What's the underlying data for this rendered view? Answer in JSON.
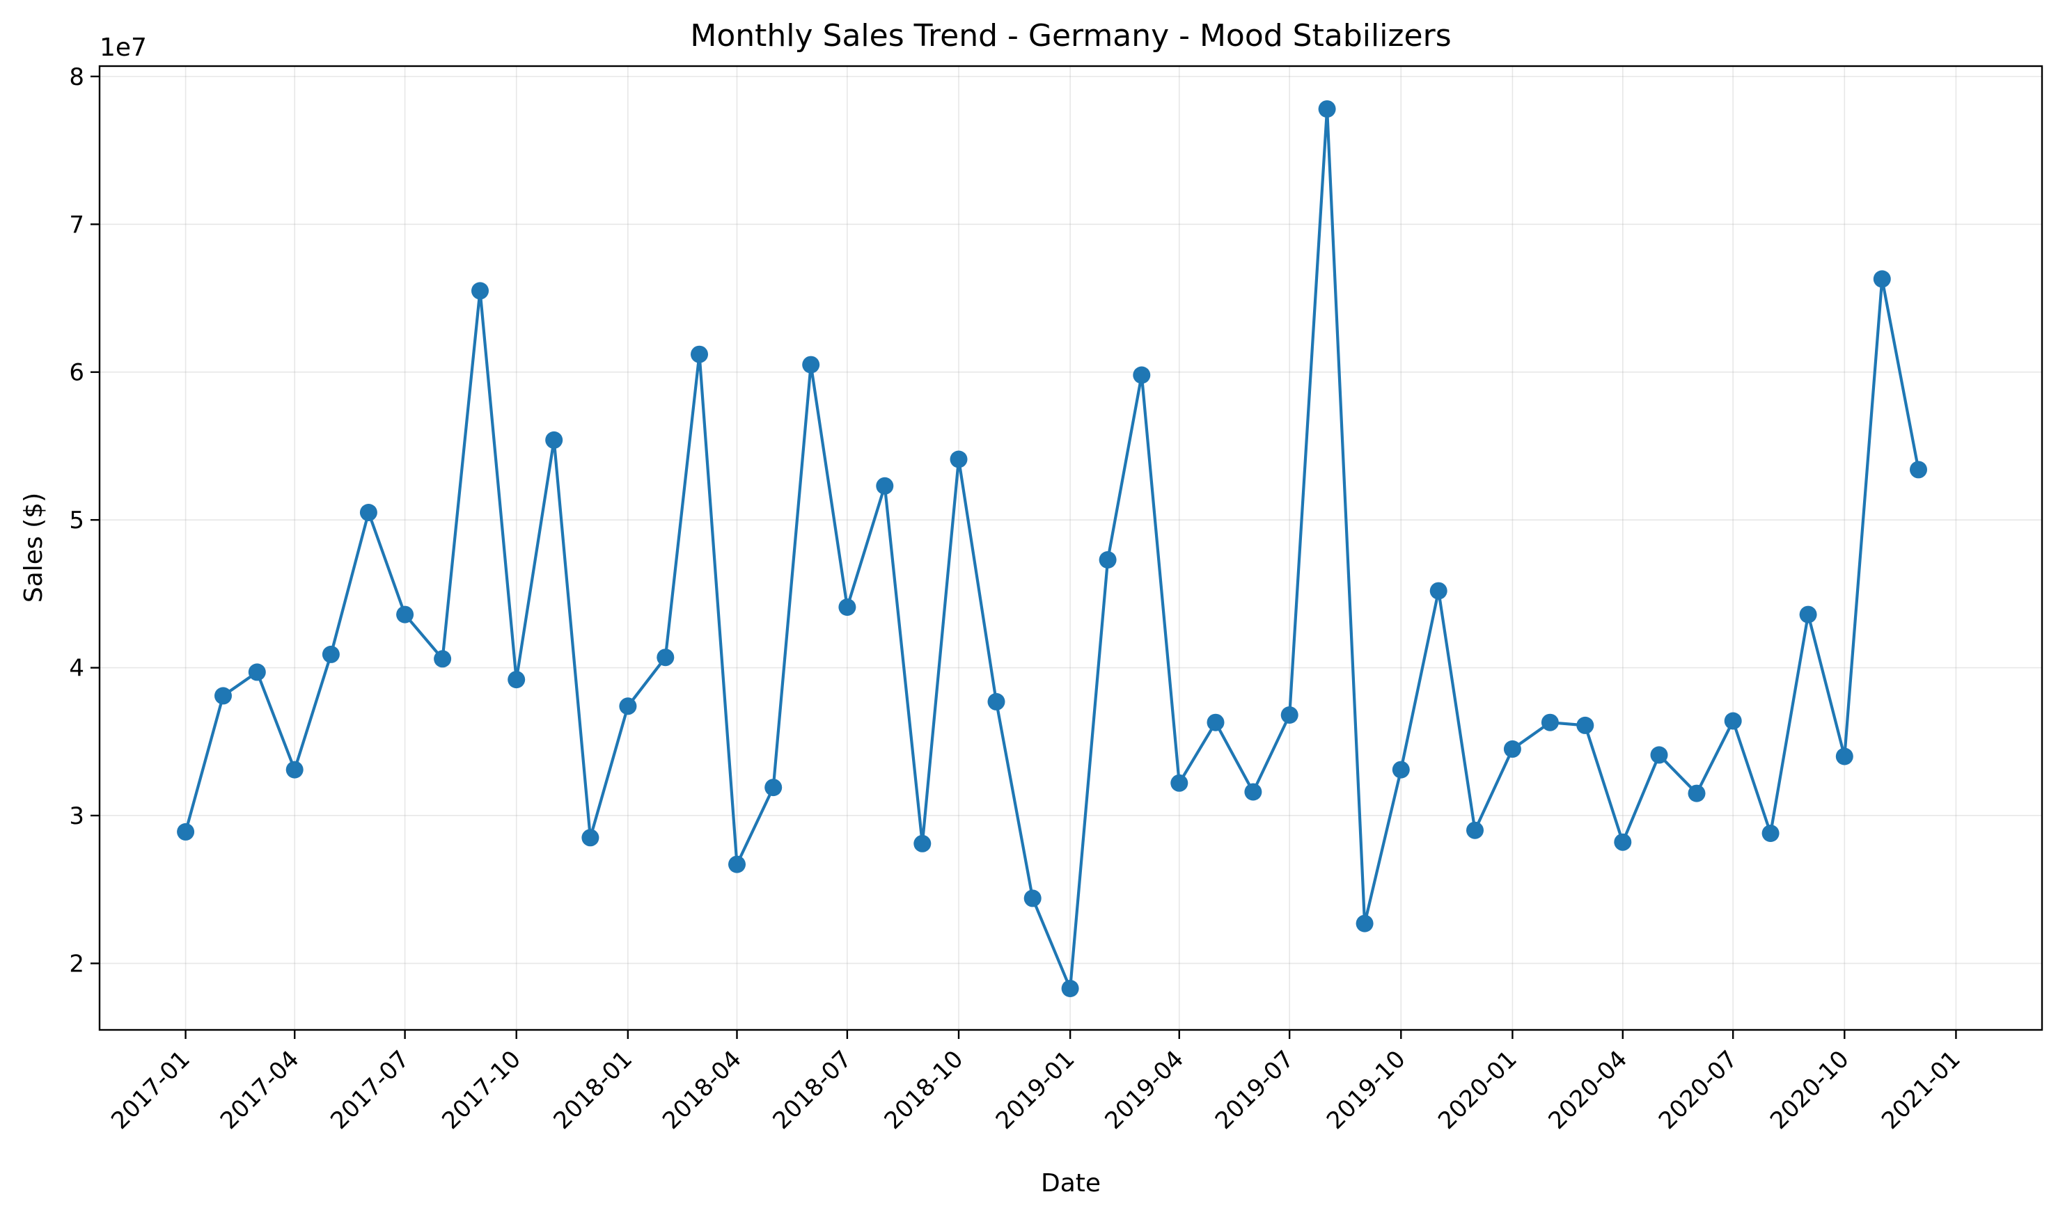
{
  "chart_data": {
    "type": "line",
    "title": "Monthly Sales Trend - Germany - Mood Stabilizers",
    "xlabel": "Date",
    "ylabel": "Sales ($)",
    "y_offset_label": "1e7",
    "grid": true,
    "xlim": [
      "2016-10-22",
      "2021-03-13"
    ],
    "ylim": [
      15500000,
      80700000
    ],
    "x_ticks": [
      "2017-01",
      "2017-04",
      "2017-07",
      "2017-10",
      "2018-01",
      "2018-04",
      "2018-07",
      "2018-10",
      "2019-01",
      "2019-04",
      "2019-07",
      "2019-10",
      "2020-01",
      "2020-04",
      "2020-07",
      "2020-10",
      "2021-01"
    ],
    "y_ticks": [
      {
        "value": 20000000,
        "label": "2"
      },
      {
        "value": 30000000,
        "label": "3"
      },
      {
        "value": 40000000,
        "label": "4"
      },
      {
        "value": 50000000,
        "label": "5"
      },
      {
        "value": 60000000,
        "label": "6"
      },
      {
        "value": 70000000,
        "label": "7"
      },
      {
        "value": 80000000,
        "label": "8"
      }
    ],
    "color": "#1f77b4",
    "series": [
      {
        "x": [
          "2017-01-01",
          "2017-02-01",
          "2017-03-01",
          "2017-04-01",
          "2017-05-01",
          "2017-06-01",
          "2017-07-01",
          "2017-08-01",
          "2017-09-01",
          "2017-10-01",
          "2017-11-01",
          "2017-12-01",
          "2018-01-01",
          "2018-02-01",
          "2018-03-01",
          "2018-04-01",
          "2018-05-01",
          "2018-06-01",
          "2018-07-01",
          "2018-08-01",
          "2018-09-01",
          "2018-10-01",
          "2018-11-01",
          "2018-12-01",
          "2019-01-01",
          "2019-02-01",
          "2019-03-01",
          "2019-04-01",
          "2019-05-01",
          "2019-06-01",
          "2019-07-01",
          "2019-08-01",
          "2019-09-01",
          "2019-10-01",
          "2019-11-01",
          "2019-12-01",
          "2020-01-01",
          "2020-02-01",
          "2020-03-01",
          "2020-04-01",
          "2020-05-01",
          "2020-06-01",
          "2020-07-01",
          "2020-08-01",
          "2020-09-01",
          "2020-10-01",
          "2020-11-01",
          "2020-12-01"
        ],
        "values": [
          28900000,
          38100000,
          39700000,
          33100000,
          40900000,
          50500000,
          43600000,
          40600000,
          65500000,
          39200000,
          55400000,
          28500000,
          37400000,
          40700000,
          61200000,
          26700000,
          31900000,
          60500000,
          44100000,
          52300000,
          28100000,
          54100000,
          37700000,
          24400000,
          18300000,
          47300000,
          59800000,
          32200000,
          36300000,
          31600000,
          36800000,
          77800000,
          22700000,
          33100000,
          45200000,
          29000000,
          34500000,
          36300000,
          36100000,
          28200000,
          34100000,
          31500000,
          36400000,
          28800000,
          43600000,
          34000000,
          66300000,
          53400000
        ]
      }
    ]
  }
}
